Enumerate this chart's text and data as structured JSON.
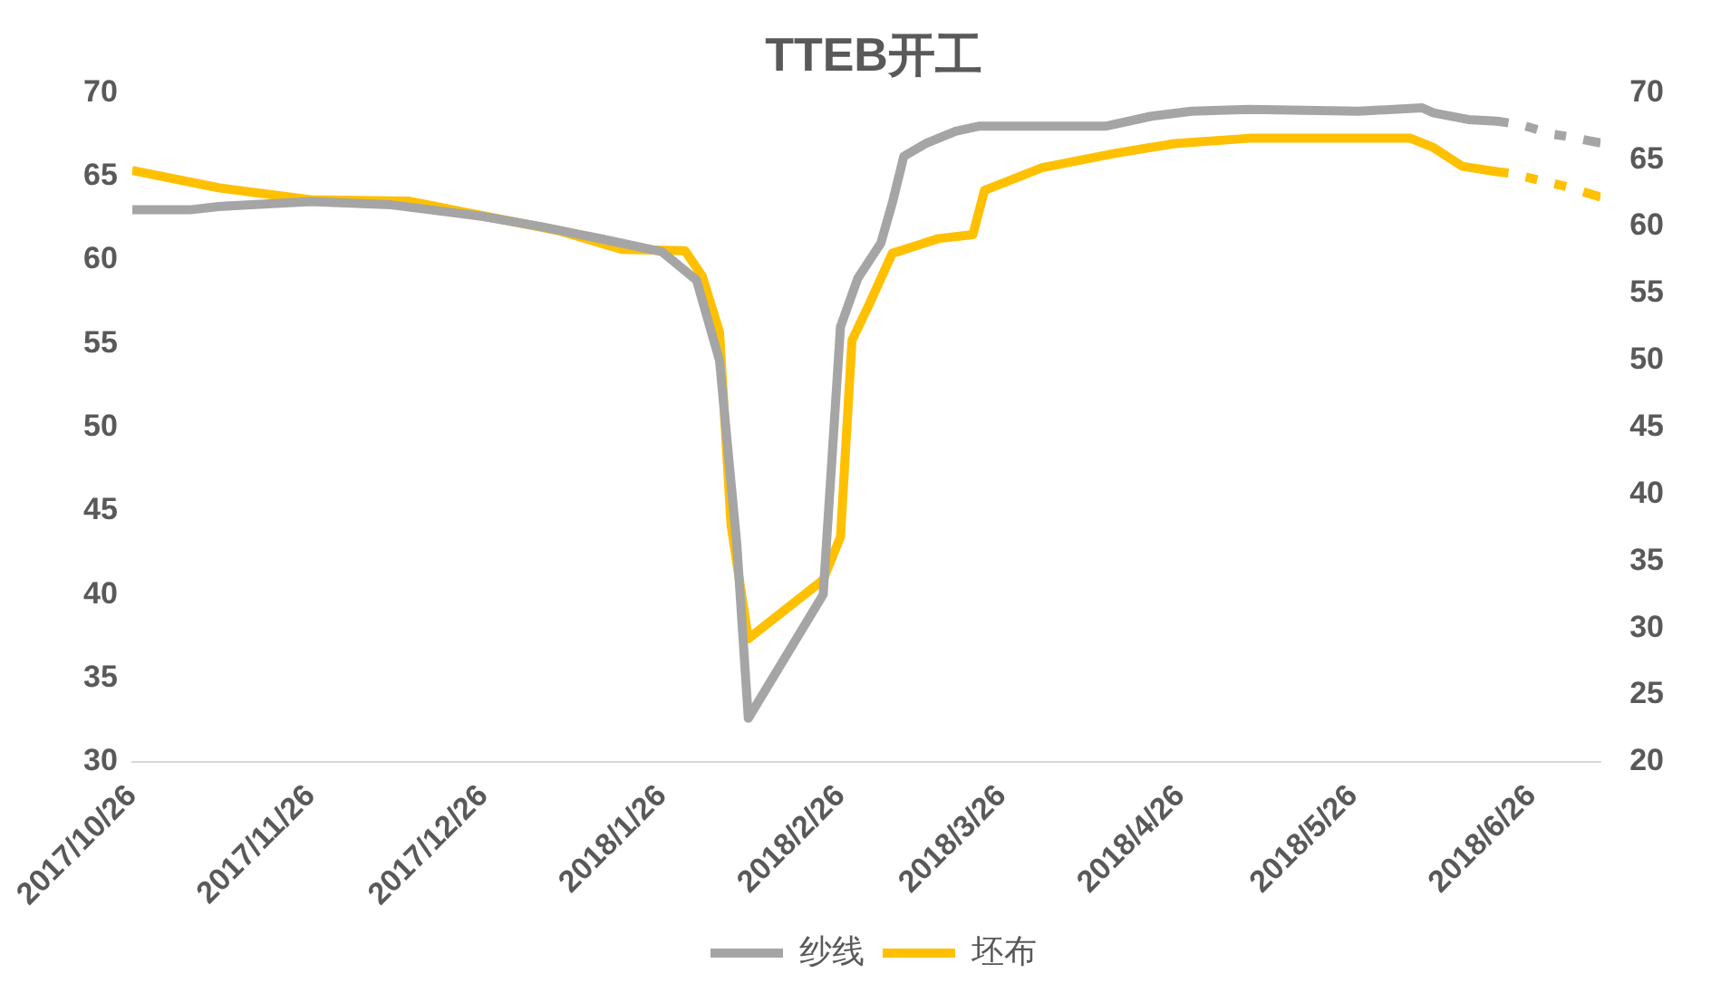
{
  "chart_data": {
    "type": "line",
    "title": "TTEB开工",
    "legend": "bottom",
    "grid": false,
    "xlim": [
      "2017-10-26",
      "2018-07-08"
    ],
    "xticks": [
      {
        "value": "2017-10-26",
        "label": "2017/10/26"
      },
      {
        "value": "2017-11-26",
        "label": "2017/11/26"
      },
      {
        "value": "2017-12-26",
        "label": "2017/12/26"
      },
      {
        "value": "2018-01-26",
        "label": "2018/1/26"
      },
      {
        "value": "2018-02-26",
        "label": "2018/2/26"
      },
      {
        "value": "2018-03-26",
        "label": "2018/3/26"
      },
      {
        "value": "2018-04-26",
        "label": "2018/4/26"
      },
      {
        "value": "2018-05-26",
        "label": "2018/5/26"
      },
      {
        "value": "2018-06-26",
        "label": "2018/6/26"
      }
    ],
    "ylim": [
      30,
      70
    ],
    "yticks": [
      30,
      35,
      40,
      45,
      50,
      55,
      60,
      65,
      70
    ],
    "y2lim": [
      20,
      70
    ],
    "y2ticks": [
      20,
      25,
      30,
      35,
      40,
      45,
      50,
      55,
      60,
      65,
      70
    ],
    "series": [
      {
        "name": "纱线",
        "color": "#a5a5a5",
        "x": [
          "2017-10-26",
          "2017-11-05",
          "2017-11-10",
          "2017-11-26",
          "2017-12-10",
          "2017-12-26",
          "2018-01-05",
          "2018-01-15",
          "2018-01-26",
          "2018-02-01",
          "2018-02-05",
          "2018-02-08",
          "2018-02-10",
          "2018-02-23",
          "2018-02-26",
          "2018-03-01",
          "2018-03-05",
          "2018-03-07",
          "2018-03-09",
          "2018-03-13",
          "2018-03-18",
          "2018-03-22",
          "2018-04-13",
          "2018-04-21",
          "2018-04-28",
          "2018-05-08",
          "2018-05-27",
          "2018-06-07",
          "2018-06-09",
          "2018-06-15",
          "2018-06-20",
          "2018-06-22",
          "2018-06-23",
          "2018-06-25",
          "2018-06-27",
          "2018-06-28",
          "2018-06-30",
          "2018-07-02",
          "2018-07-03",
          "2018-07-05",
          "2018-07-08"
        ],
        "values": [
          63,
          63,
          63.2,
          63.5,
          63.3,
          62.6,
          62,
          61.3,
          60.5,
          58.8,
          54,
          43,
          32.6,
          40,
          56,
          58.9,
          61,
          63.4,
          66.2,
          67,
          67.7,
          68,
          68,
          68.6,
          68.9,
          69,
          68.9,
          69.1,
          68.8,
          68.4,
          68.3,
          68.2,
          null,
          68,
          67.8,
          null,
          67.5,
          67.4,
          null,
          67.2,
          67
        ]
      },
      {
        "name": "坯布",
        "color": "#ffc000",
        "axis": "y2",
        "x": [
          "2017-10-26",
          "2017-11-10",
          "2017-11-26",
          "2017-12-13",
          "2017-12-26",
          "2018-01-08",
          "2018-01-19",
          "2018-01-30",
          "2018-02-02",
          "2018-02-05",
          "2018-02-07",
          "2018-02-10",
          "2018-02-23",
          "2018-02-26",
          "2018-02-28",
          "2018-03-03",
          "2018-03-07",
          "2018-03-15",
          "2018-03-21",
          "2018-03-23",
          "2018-04-02",
          "2018-04-15",
          "2018-04-25",
          "2018-05-08",
          "2018-06-05",
          "2018-06-09",
          "2018-06-14",
          "2018-06-20",
          "2018-06-22",
          "2018-06-23",
          "2018-06-25",
          "2018-06-27",
          "2018-06-28",
          "2018-06-30",
          "2018-07-02",
          "2018-07-03",
          "2018-07-05",
          "2018-07-08"
        ],
        "values": [
          64.2,
          62.9,
          62,
          61.9,
          60.8,
          59.7,
          58.3,
          58.2,
          56.3,
          52.1,
          37.7,
          29.2,
          33.6,
          36.8,
          51.5,
          54.2,
          58,
          59.1,
          59.4,
          62.7,
          64.4,
          65.5,
          66.2,
          66.6,
          66.6,
          65.9,
          64.5,
          64.1,
          64,
          null,
          63.7,
          63.5,
          null,
          63.2,
          63,
          null,
          62.6,
          62.2
        ]
      }
    ]
  }
}
